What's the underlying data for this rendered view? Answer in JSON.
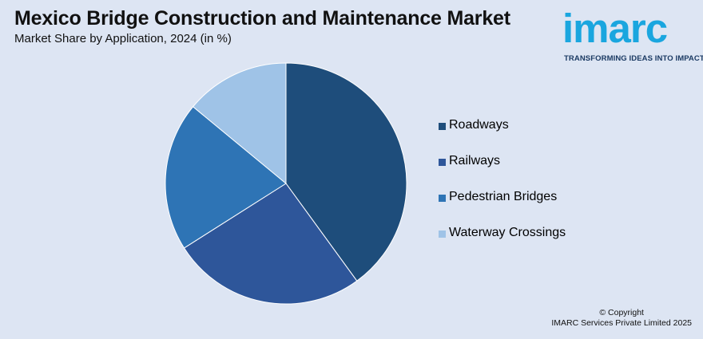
{
  "header": {
    "title": "Mexico Bridge Construction and Maintenance Market",
    "subtitle": "Market Share by Application, 2024 (in %)"
  },
  "logo": {
    "word": "imarc",
    "tagline": "TRANSFORMING IDEAS INTO IMPACT",
    "color": "#1aa6df"
  },
  "chart_data": {
    "type": "pie",
    "title": "Mexico Bridge Construction and Maintenance Market",
    "subtitle": "Market Share by Application, 2024 (in %)",
    "categories": [
      "Roadways",
      "Railways",
      "Pedestrian Bridges",
      "Waterway Crossings"
    ],
    "values": [
      40,
      26,
      20,
      14
    ],
    "colors": [
      "#1e4d7b",
      "#2e569a",
      "#2e74b5",
      "#9fc3e7"
    ],
    "legend_position": "right",
    "start_angle": "12 o'clock",
    "direction": "clockwise"
  },
  "legend": {
    "items": [
      {
        "label": "Roadways",
        "color": "#1e4d7b"
      },
      {
        "label": "Railways",
        "color": "#2e569a"
      },
      {
        "label": "Pedestrian Bridges",
        "color": "#2e74b5"
      },
      {
        "label": "Waterway Crossings",
        "color": "#9fc3e7"
      }
    ]
  },
  "footer": {
    "copyright_line1": "© Copyright",
    "copyright_line2": "IMARC Services Private Limited 2025"
  }
}
